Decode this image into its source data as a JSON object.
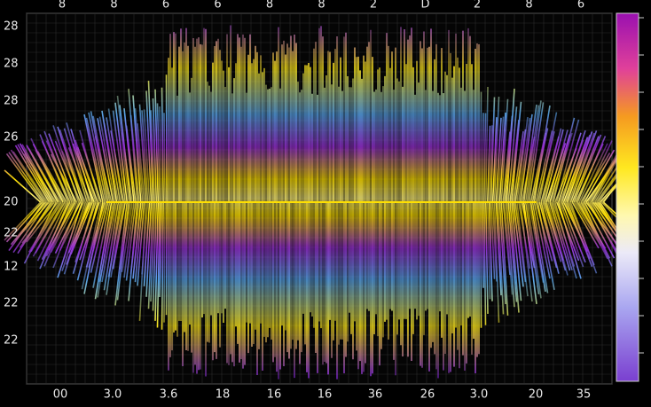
{
  "top_labels": [
    "8",
    "8",
    "6",
    "6",
    "8",
    "8",
    "2",
    "D",
    "2",
    "8",
    "6"
  ],
  "left_labels": [
    "28",
    "28",
    "28",
    "26",
    "20",
    "22",
    "12",
    "22",
    "22"
  ],
  "bottom_labels": [
    "00",
    "3.0",
    "3.6",
    "18",
    "16",
    "16",
    "36",
    "26",
    "3.0",
    "20",
    "35"
  ]
}
